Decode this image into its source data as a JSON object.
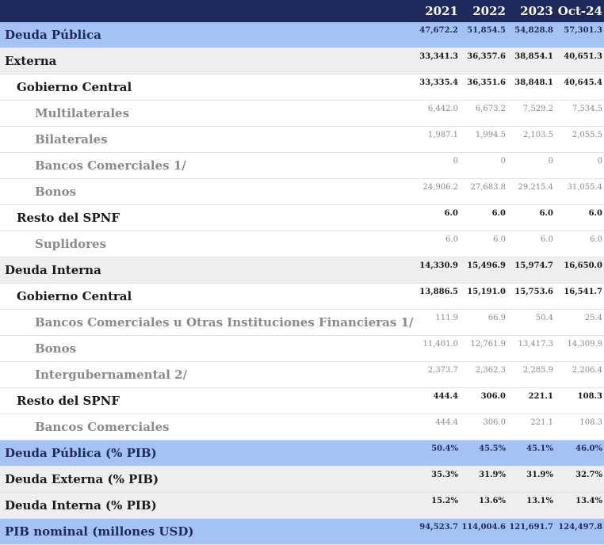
{
  "table": {
    "headers": [
      "2021",
      "2022",
      "2023",
      "Oct-24"
    ],
    "rows": [
      {
        "label": "Deuda Pública",
        "values": [
          "47,672.2",
          "51,854.5",
          "54,828.8",
          "57,301.3"
        ]
      },
      {
        "label": "Externa",
        "values": [
          "33,341.3",
          "36,357.6",
          "38,854.1",
          "40,651.3"
        ]
      },
      {
        "label": "Gobierno Central",
        "values": [
          "33,335.4",
          "36,351.6",
          "38,848.1",
          "40,645.4"
        ]
      },
      {
        "label": "Multilaterales",
        "values": [
          "6,442.0",
          "6,673.2",
          "7,529.2",
          "7,534.5"
        ]
      },
      {
        "label": "Bilaterales",
        "values": [
          "1,987.1",
          "1,994.5",
          "2,103.5",
          "2,055.5"
        ]
      },
      {
        "label": "Bancos Comerciales 1/",
        "values": [
          "0",
          "0",
          "0",
          "0"
        ]
      },
      {
        "label": "Bonos",
        "values": [
          "24,906.2",
          "27,683.8",
          "29,215.4",
          "31,055.4"
        ]
      },
      {
        "label": "Resto del SPNF",
        "values": [
          "6.0",
          "6.0",
          "6.0",
          "6.0"
        ]
      },
      {
        "label": "Suplidores",
        "values": [
          "6.0",
          "6.0",
          "6.0",
          "6.0"
        ]
      },
      {
        "label": "Deuda Interna",
        "values": [
          "14,330.9",
          "15,496.9",
          "15,974.7",
          "16,650.0"
        ]
      },
      {
        "label": "Gobierno Central",
        "values": [
          "13,886.5",
          "15,191.0",
          "15,753.6",
          "16,541.7"
        ]
      },
      {
        "label": "Bancos Comerciales u Otras Instituciones Financieras 1/",
        "values": [
          "111.9",
          "66.9",
          "50.4",
          "25.4"
        ]
      },
      {
        "label": "Bonos",
        "values": [
          "11,401.0",
          "12,761.9",
          "13,417.3",
          "14,309.9"
        ]
      },
      {
        "label": "Intergubernamental 2/",
        "values": [
          "2,373.7",
          "2,362.3",
          "2,285.9",
          "2,206.4"
        ]
      },
      {
        "label": "Resto del SPNF",
        "values": [
          "444.4",
          "306.0",
          "221.1",
          "108.3"
        ]
      },
      {
        "label": "Bancos Comerciales",
        "values": [
          "444.4",
          "306.0",
          "221.1",
          "108.3"
        ]
      },
      {
        "label": "Deuda Pública (% PIB)",
        "values": [
          "50.4%",
          "45.5%",
          "45.1%",
          "46.0%"
        ]
      },
      {
        "label": "Deuda Externa (% PIB)",
        "values": [
          "35.3%",
          "31.9%",
          "31.9%",
          "32.7%"
        ]
      },
      {
        "label": "Deuda Interna (% PIB)",
        "values": [
          "15.2%",
          "13.6%",
          "13.1%",
          "13.4%"
        ]
      },
      {
        "label": "PIB nominal (millones USD)",
        "values": [
          "94,523.7",
          "114,004.6",
          "121,691.7",
          "124,497.8"
        ]
      }
    ]
  },
  "colors": {
    "header_bg": "#1f2a5c",
    "highlight_bg": "#a4c2f4",
    "grey_bg": "#efefef"
  }
}
